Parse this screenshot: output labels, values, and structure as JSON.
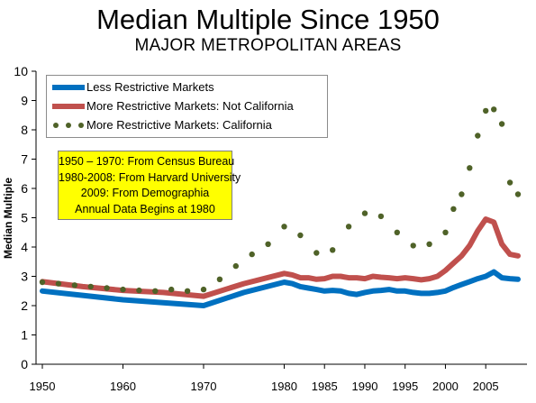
{
  "title": "Median Multiple Since 1950",
  "subtitle": "MAJOR METROPOLITAN AREAS",
  "note": [
    "1950 – 1970: From Census Bureau",
    "1980-2008: From Harvard University",
    "2009: From Demographia",
    "Annual Data Begins at 1980"
  ],
  "colors": {
    "less": "#0070c0",
    "not_ca": "#c0504d",
    "ca": "#4f6228",
    "note_bg": "#ffff00"
  },
  "chart_data": {
    "type": "line",
    "title": "Median Multiple Since 1950",
    "subtitle": "MAJOR METROPOLITAN AREAS",
    "xlabel": "",
    "ylabel": "Median Multiple",
    "xlim": [
      1950,
      2009
    ],
    "ylim": [
      0,
      10
    ],
    "x_ticks": [
      1950,
      1960,
      1970,
      1980,
      1985,
      1990,
      1995,
      2000,
      2005
    ],
    "y_ticks": [
      0,
      1,
      2,
      3,
      4,
      5,
      6,
      7,
      8,
      9,
      10
    ],
    "grid": false,
    "legend": "top-left",
    "series": [
      {
        "name": "Less Restrictive Markets",
        "style": "line",
        "x": [
          1950,
          1955,
          1960,
          1965,
          1970,
          1975,
          1980,
          1981,
          1982,
          1983,
          1984,
          1985,
          1986,
          1987,
          1988,
          1989,
          1990,
          1991,
          1992,
          1993,
          1994,
          1995,
          1996,
          1997,
          1998,
          1999,
          2000,
          2001,
          2002,
          2003,
          2004,
          2005,
          2006,
          2007,
          2008,
          2009
        ],
        "y": [
          2.5,
          2.35,
          2.2,
          2.1,
          2.0,
          2.45,
          2.8,
          2.75,
          2.65,
          2.6,
          2.55,
          2.5,
          2.52,
          2.5,
          2.42,
          2.38,
          2.45,
          2.5,
          2.52,
          2.55,
          2.5,
          2.5,
          2.45,
          2.42,
          2.42,
          2.45,
          2.5,
          2.62,
          2.72,
          2.82,
          2.92,
          3.0,
          3.15,
          2.95,
          2.92,
          2.9
        ]
      },
      {
        "name": "More Restrictive Markets: Not California",
        "style": "line",
        "x": [
          1950,
          1955,
          1960,
          1965,
          1970,
          1975,
          1980,
          1981,
          1982,
          1983,
          1984,
          1985,
          1986,
          1987,
          1988,
          1989,
          1990,
          1991,
          1992,
          1993,
          1994,
          1995,
          1996,
          1997,
          1998,
          1999,
          2000,
          2001,
          2002,
          2003,
          2004,
          2005,
          2006,
          2007,
          2008,
          2009
        ],
        "y": [
          2.82,
          2.65,
          2.52,
          2.45,
          2.32,
          2.75,
          3.1,
          3.05,
          2.95,
          2.95,
          2.9,
          2.92,
          3.0,
          3.0,
          2.95,
          2.95,
          2.92,
          3.0,
          2.97,
          2.95,
          2.92,
          2.95,
          2.92,
          2.88,
          2.92,
          3.0,
          3.2,
          3.45,
          3.7,
          4.05,
          4.55,
          4.95,
          4.85,
          4.1,
          3.75,
          3.7
        ]
      },
      {
        "name": "More Restrictive Markets: California",
        "style": "dotted",
        "x": [
          1950,
          1952,
          1954,
          1956,
          1958,
          1960,
          1962,
          1964,
          1966,
          1968,
          1970,
          1972,
          1974,
          1976,
          1978,
          1980,
          1982,
          1984,
          1986,
          1988,
          1990,
          1992,
          1994,
          1996,
          1998,
          2000,
          2001,
          2002,
          2003,
          2004,
          2005,
          2006,
          2007,
          2008,
          2009
        ],
        "y": [
          2.8,
          2.75,
          2.7,
          2.65,
          2.6,
          2.55,
          2.52,
          2.5,
          2.55,
          2.5,
          2.55,
          2.9,
          3.35,
          3.75,
          4.1,
          4.7,
          4.4,
          3.8,
          3.9,
          4.7,
          5.15,
          5.05,
          4.5,
          4.05,
          4.1,
          4.5,
          5.3,
          5.8,
          6.7,
          7.8,
          8.65,
          8.7,
          8.2,
          6.2,
          5.8
        ]
      }
    ]
  }
}
